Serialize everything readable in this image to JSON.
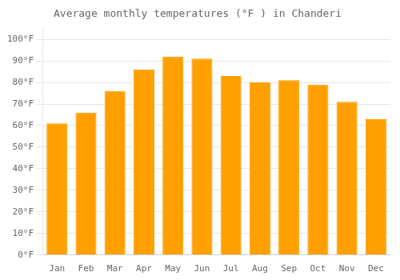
{
  "chart_data": {
    "type": "bar",
    "title": "Average monthly temperatures (°F ) in Chanderi",
    "categories": [
      "Jan",
      "Feb",
      "Mar",
      "Apr",
      "May",
      "Jun",
      "Jul",
      "Aug",
      "Sep",
      "Oct",
      "Nov",
      "Dec"
    ],
    "values": [
      61,
      66,
      76,
      86,
      92,
      91,
      83,
      80,
      81,
      79,
      71,
      63
    ],
    "color": "#FFA000",
    "ylim": [
      0,
      105
    ],
    "yticks": [
      {
        "value": 0,
        "label": "0°F"
      },
      {
        "value": 10,
        "label": "10°F"
      },
      {
        "value": 20,
        "label": "20°F"
      },
      {
        "value": 30,
        "label": "30°F"
      },
      {
        "value": 40,
        "label": "40°F"
      },
      {
        "value": 50,
        "label": "50°F"
      },
      {
        "value": 60,
        "label": "60°F"
      },
      {
        "value": 70,
        "label": "70°F"
      },
      {
        "value": 80,
        "label": "80°F"
      },
      {
        "value": 90,
        "label": "90°F"
      },
      {
        "value": 100,
        "label": "100°F"
      }
    ],
    "grid": true
  }
}
